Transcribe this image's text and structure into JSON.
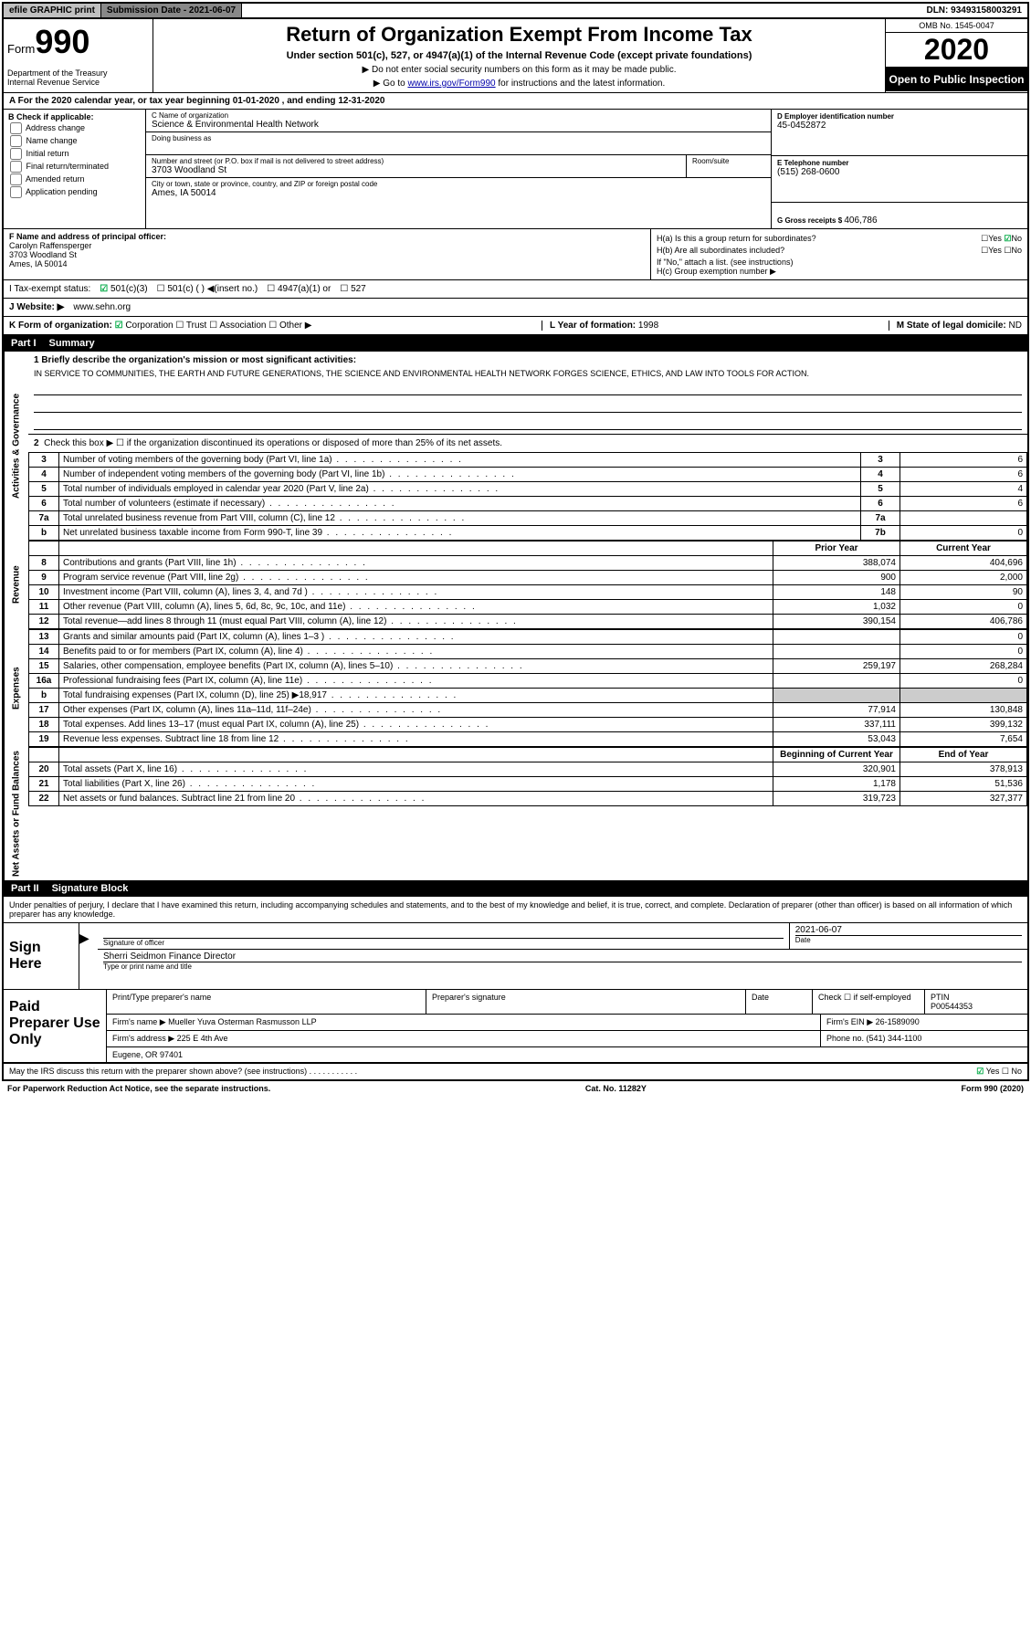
{
  "colors": {
    "border": "#000000",
    "bg_gray": "#c0c0c0",
    "bg_darkgray": "#888888",
    "link": "#0000aa",
    "check_green": "#00aa44",
    "black": "#000000",
    "white": "#ffffff",
    "shade": "#cccccc"
  },
  "top": {
    "efile": "efile GRAPHIC print",
    "sub_label": "Submission Date - 2021-06-07",
    "dln": "DLN: 93493158003291"
  },
  "header": {
    "form_word": "Form",
    "form_num": "990",
    "title": "Return of Organization Exempt From Income Tax",
    "subtitle": "Under section 501(c), 527, or 4947(a)(1) of the Internal Revenue Code (except private foundations)",
    "note1": "Do not enter social security numbers on this form as it may be made public.",
    "note2_pre": "Go to ",
    "note2_link": "www.irs.gov/Form990",
    "note2_post": " for instructions and the latest information.",
    "dept": "Department of the Treasury\nInternal Revenue Service",
    "omb": "OMB No. 1545-0047",
    "year": "2020",
    "open_public": "Open to Public Inspection"
  },
  "rowA": "A For the 2020 calendar year, or tax year beginning 01-01-2020   , and ending 12-31-2020",
  "colB": {
    "label": "B Check if applicable:",
    "opts": [
      "Address change",
      "Name change",
      "Initial return",
      "Final return/terminated",
      "Amended return",
      "Application pending"
    ]
  },
  "colC": {
    "name_lbl": "C Name of organization",
    "name": "Science & Environmental Health Network",
    "dba_lbl": "Doing business as",
    "addr_lbl": "Number and street (or P.O. box if mail is not delivered to street address)",
    "room_lbl": "Room/suite",
    "street": "3703 Woodland St",
    "city_lbl": "City or town, state or province, country, and ZIP or foreign postal code",
    "city": "Ames, IA  50014"
  },
  "colD": {
    "ein_lbl": "D Employer identification number",
    "ein": "45-0452872",
    "phone_lbl": "E Telephone number",
    "phone": "(515) 268-0600",
    "gross_lbl": "G Gross receipts $ ",
    "gross": "406,786"
  },
  "rowF": {
    "lbl": "F  Name and address of principal officer:",
    "name": "Carolyn Raffensperger",
    "street": "3703 Woodland St",
    "city": "Ames, IA  50014"
  },
  "rowH": {
    "ha": "H(a)  Is this a group return for subordinates?",
    "ha_ans_yes": "Yes",
    "ha_ans_no": "No",
    "hb": "H(b)  Are all subordinates included?",
    "hb_yes": "Yes",
    "hb_no": "No",
    "hb_note": "If \"No,\" attach a list. (see instructions)",
    "hc": "H(c)  Group exemption number ▶"
  },
  "rowI": {
    "lbl": "I     Tax-exempt status:",
    "o1": "501(c)(3)",
    "o2": "501(c) (  ) ◀(insert no.)",
    "o3": "4947(a)(1) or",
    "o4": "527"
  },
  "rowJ": {
    "lbl": "J    Website: ▶",
    "url": "www.sehn.org"
  },
  "rowK": {
    "lbl": "K Form of organization:",
    "o1": "Corporation",
    "o2": "Trust",
    "o3": "Association",
    "o4": "Other ▶"
  },
  "rowL": {
    "lbl": "L Year of formation: ",
    "val": "1998"
  },
  "rowM": {
    "lbl": "M State of legal domicile: ",
    "val": "ND"
  },
  "part1": {
    "header_num": "Part I",
    "header_title": "Summary",
    "tab_ag": "Activities & Governance",
    "tab_rev": "Revenue",
    "tab_exp": "Expenses",
    "tab_na": "Net Assets or Fund Balances",
    "q1_lbl": "1  Briefly describe the organization's mission or most significant activities:",
    "q1_text": "IN SERVICE TO COMMUNITIES, THE EARTH AND FUTURE GENERATIONS, THE SCIENCE AND ENVIRONMENTAL HEALTH NETWORK FORGES SCIENCE, ETHICS, AND LAW INTO TOOLS FOR ACTION.",
    "q2": "Check this box ▶ ☐  if the organization discontinued its operations or disposed of more than 25% of its net assets.",
    "lines_ag": [
      {
        "n": "3",
        "d": "Number of voting members of the governing body (Part VI, line 1a)",
        "box": "3",
        "v": "6"
      },
      {
        "n": "4",
        "d": "Number of independent voting members of the governing body (Part VI, line 1b)",
        "box": "4",
        "v": "6"
      },
      {
        "n": "5",
        "d": "Total number of individuals employed in calendar year 2020 (Part V, line 2a)",
        "box": "5",
        "v": "4"
      },
      {
        "n": "6",
        "d": "Total number of volunteers (estimate if necessary)",
        "box": "6",
        "v": "6"
      },
      {
        "n": "7a",
        "d": "Total unrelated business revenue from Part VIII, column (C), line 12",
        "box": "7a",
        "v": ""
      },
      {
        "n": "b",
        "d": "Net unrelated business taxable income from Form 990-T, line 39",
        "box": "7b",
        "v": "0"
      }
    ],
    "col_prior": "Prior Year",
    "col_current": "Current Year",
    "lines_rev": [
      {
        "n": "8",
        "d": "Contributions and grants (Part VIII, line 1h)",
        "p": "388,074",
        "c": "404,696"
      },
      {
        "n": "9",
        "d": "Program service revenue (Part VIII, line 2g)",
        "p": "900",
        "c": "2,000"
      },
      {
        "n": "10",
        "d": "Investment income (Part VIII, column (A), lines 3, 4, and 7d )",
        "p": "148",
        "c": "90"
      },
      {
        "n": "11",
        "d": "Other revenue (Part VIII, column (A), lines 5, 6d, 8c, 9c, 10c, and 11e)",
        "p": "1,032",
        "c": "0"
      },
      {
        "n": "12",
        "d": "Total revenue—add lines 8 through 11 (must equal Part VIII, column (A), line 12)",
        "p": "390,154",
        "c": "406,786"
      }
    ],
    "lines_exp": [
      {
        "n": "13",
        "d": "Grants and similar amounts paid (Part IX, column (A), lines 1–3 )",
        "p": "",
        "c": "0"
      },
      {
        "n": "14",
        "d": "Benefits paid to or for members (Part IX, column (A), line 4)",
        "p": "",
        "c": "0"
      },
      {
        "n": "15",
        "d": "Salaries, other compensation, employee benefits (Part IX, column (A), lines 5–10)",
        "p": "259,197",
        "c": "268,284"
      },
      {
        "n": "16a",
        "d": "Professional fundraising fees (Part IX, column (A), line 11e)",
        "p": "",
        "c": "0"
      },
      {
        "n": "b",
        "d": "Total fundraising expenses (Part IX, column (D), line 25) ▶18,917",
        "p": "SHADE",
        "c": "SHADE"
      },
      {
        "n": "17",
        "d": "Other expenses (Part IX, column (A), lines 11a–11d, 11f–24e)",
        "p": "77,914",
        "c": "130,848"
      },
      {
        "n": "18",
        "d": "Total expenses. Add lines 13–17 (must equal Part IX, column (A), line 25)",
        "p": "337,111",
        "c": "399,132"
      },
      {
        "n": "19",
        "d": "Revenue less expenses. Subtract line 18 from line 12",
        "p": "53,043",
        "c": "7,654"
      }
    ],
    "col_begin": "Beginning of Current Year",
    "col_end": "End of Year",
    "lines_na": [
      {
        "n": "20",
        "d": "Total assets (Part X, line 16)",
        "p": "320,901",
        "c": "378,913"
      },
      {
        "n": "21",
        "d": "Total liabilities (Part X, line 26)",
        "p": "1,178",
        "c": "51,536"
      },
      {
        "n": "22",
        "d": "Net assets or fund balances. Subtract line 21 from line 20",
        "p": "319,723",
        "c": "327,377"
      }
    ]
  },
  "part2": {
    "header_num": "Part II",
    "header_title": "Signature Block",
    "intro": "Under penalties of perjury, I declare that I have examined this return, including accompanying schedules and statements, and to the best of my knowledge and belief, it is true, correct, and complete. Declaration of preparer (other than officer) is based on all information of which preparer has any knowledge.",
    "sign_here": "Sign Here",
    "sig_officer_lbl": "Signature of officer",
    "date_lbl": "Date",
    "date_val": "2021-06-07",
    "officer_name": "Sherri Seidmon Finance Director",
    "officer_type_lbl": "Type or print name and title"
  },
  "paid": {
    "title": "Paid Preparer Use Only",
    "print_lbl": "Print/Type preparer's name",
    "sig_lbl": "Preparer's signature",
    "date_lbl": "Date",
    "check_lbl": "Check ☐ if self-employed",
    "ptin_lbl": "PTIN",
    "ptin": "P00544353",
    "firm_name_lbl": "Firm's name    ▶",
    "firm_name": "Mueller Yuva Osterman Rasmusson LLP",
    "firm_ein_lbl": "Firm's EIN ▶",
    "firm_ein": "26-1589090",
    "firm_addr_lbl": "Firm's address ▶",
    "firm_addr1": "225 E 4th Ave",
    "firm_addr2": "Eugene, OR  97401",
    "firm_phone_lbl": "Phone no. ",
    "firm_phone": "(541) 344-1100"
  },
  "footer": {
    "discuss": "May the IRS discuss this return with the preparer shown above? (see instructions)",
    "yes": "Yes",
    "no": "No",
    "paperwork": "For Paperwork Reduction Act Notice, see the separate instructions.",
    "cat": "Cat. No. 11282Y",
    "form": "Form 990 (2020)"
  }
}
